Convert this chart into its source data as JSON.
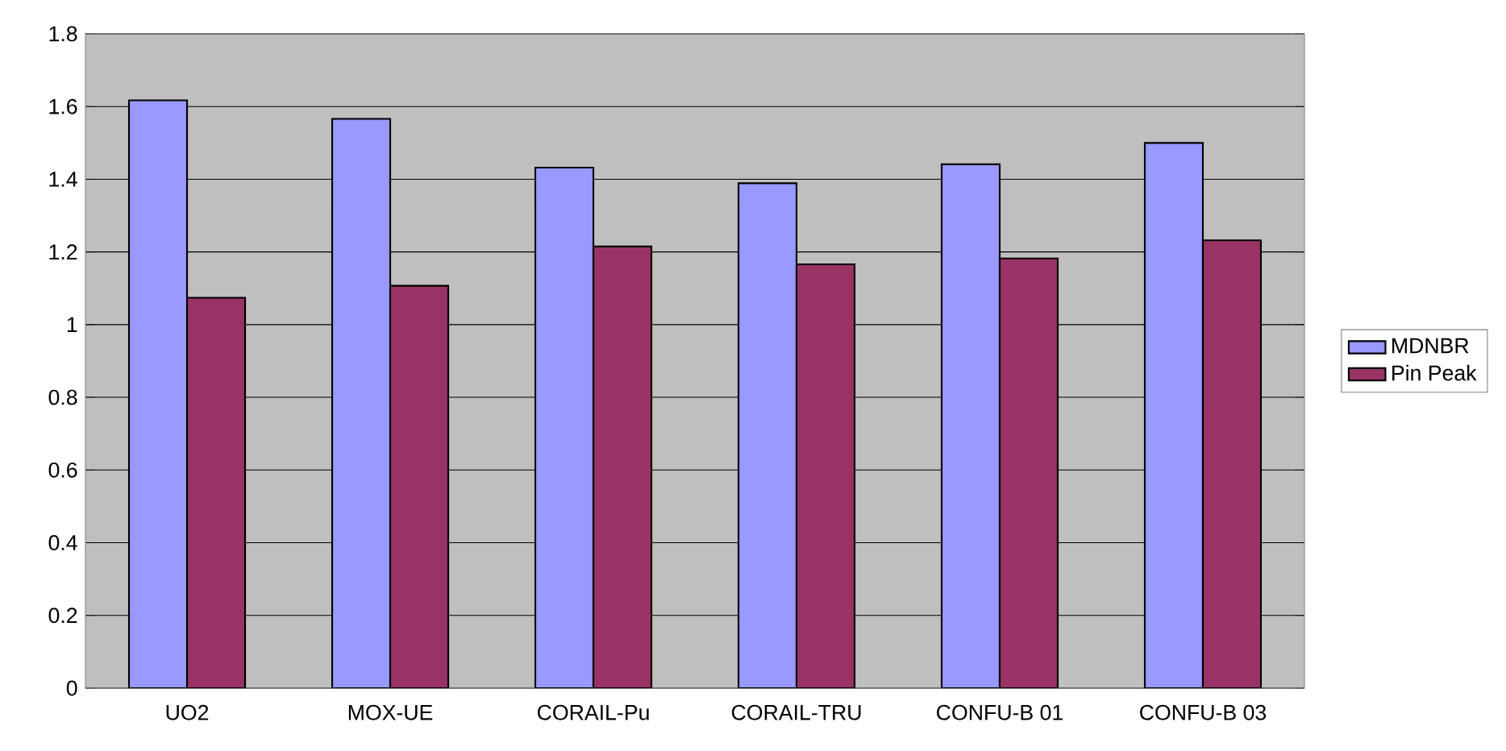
{
  "chart_data": {
    "type": "bar",
    "categories": [
      "UO2",
      "MOX-UE",
      "CORAIL-Pu",
      "CORAIL-TRU",
      "CONFU-B 01",
      "CONFU-B 03"
    ],
    "series": [
      {
        "name": "MDNBR",
        "color": "#9999ff",
        "values": [
          1.617,
          1.566,
          1.432,
          1.389,
          1.441,
          1.5
        ]
      },
      {
        "name": "Pin Peak",
        "color": "#993366",
        "values": [
          1.074,
          1.107,
          1.215,
          1.166,
          1.182,
          1.232
        ]
      }
    ],
    "ylim": [
      0,
      1.8
    ],
    "yticks": [
      0,
      0.2,
      0.4,
      0.6,
      0.8,
      1,
      1.2,
      1.4,
      1.6,
      1.8
    ],
    "grid": "y",
    "legend": "right"
  }
}
